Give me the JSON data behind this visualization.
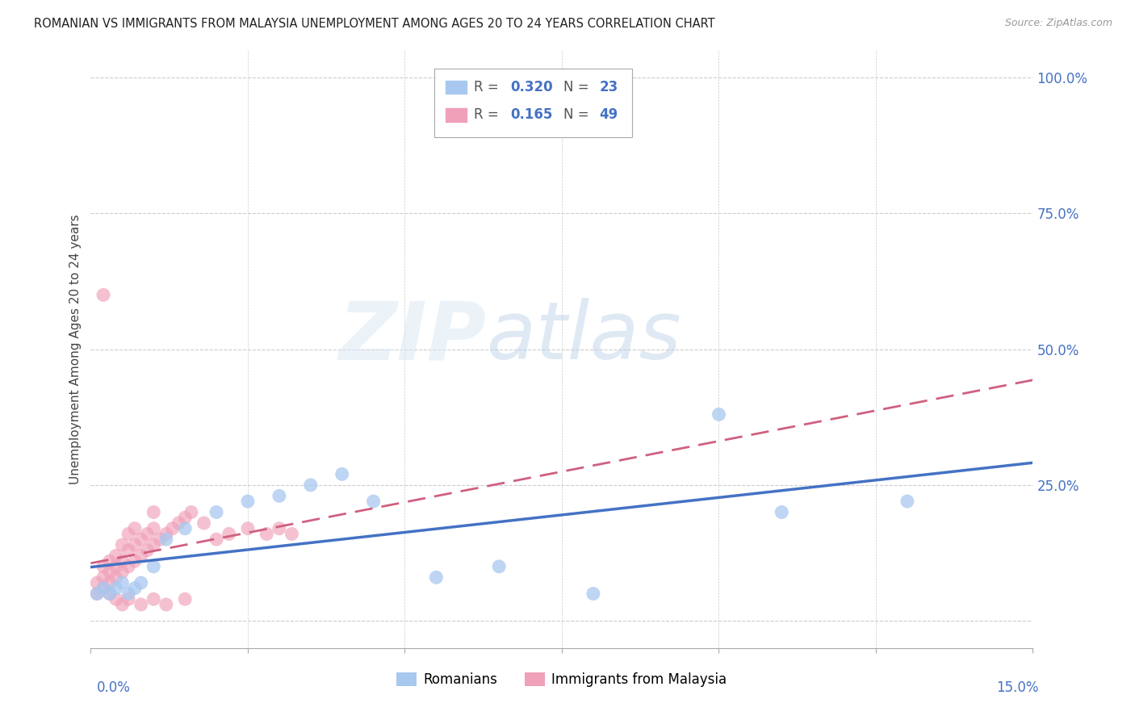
{
  "title": "ROMANIAN VS IMMIGRANTS FROM MALAYSIA UNEMPLOYMENT AMONG AGES 20 TO 24 YEARS CORRELATION CHART",
  "source": "Source: ZipAtlas.com",
  "ylabel": "Unemployment Among Ages 20 to 24 years",
  "xlim": [
    0.0,
    0.15
  ],
  "ylim": [
    -0.05,
    1.05
  ],
  "yticks": [
    0.0,
    0.25,
    0.5,
    0.75,
    1.0
  ],
  "ytick_labels": [
    "",
    "25.0%",
    "50.0%",
    "75.0%",
    "100.0%"
  ],
  "romanian_R": 0.32,
  "romanian_N": 23,
  "malaysia_R": 0.165,
  "malaysia_N": 49,
  "romanians_color": "#a8c8f0",
  "malaysia_color": "#f0a0b8",
  "romanians_line_color": "#4472c4",
  "malaysia_line_color": "#d06080",
  "ro_x": [
    0.001,
    0.002,
    0.003,
    0.004,
    0.005,
    0.006,
    0.007,
    0.008,
    0.01,
    0.012,
    0.015,
    0.02,
    0.025,
    0.03,
    0.035,
    0.04,
    0.045,
    0.055,
    0.065,
    0.08,
    0.1,
    0.11,
    0.13
  ],
  "ro_y": [
    0.05,
    0.06,
    0.05,
    0.06,
    0.07,
    0.05,
    0.06,
    0.07,
    0.1,
    0.15,
    0.17,
    0.2,
    0.22,
    0.23,
    0.25,
    0.27,
    0.22,
    0.08,
    0.1,
    0.05,
    0.38,
    0.2,
    0.22
  ],
  "ma_x": [
    0.001,
    0.001,
    0.002,
    0.002,
    0.002,
    0.003,
    0.003,
    0.003,
    0.004,
    0.004,
    0.004,
    0.005,
    0.005,
    0.005,
    0.006,
    0.006,
    0.006,
    0.007,
    0.007,
    0.007,
    0.008,
    0.008,
    0.009,
    0.009,
    0.01,
    0.01,
    0.01,
    0.011,
    0.012,
    0.013,
    0.014,
    0.015,
    0.016,
    0.018,
    0.02,
    0.022,
    0.025,
    0.028,
    0.03,
    0.032,
    0.002,
    0.003,
    0.004,
    0.005,
    0.006,
    0.008,
    0.01,
    0.012,
    0.015
  ],
  "ma_y": [
    0.05,
    0.07,
    0.06,
    0.08,
    0.1,
    0.07,
    0.09,
    0.11,
    0.08,
    0.1,
    0.12,
    0.09,
    0.11,
    0.14,
    0.1,
    0.13,
    0.16,
    0.11,
    0.14,
    0.17,
    0.12,
    0.15,
    0.13,
    0.16,
    0.14,
    0.17,
    0.2,
    0.15,
    0.16,
    0.17,
    0.18,
    0.19,
    0.2,
    0.18,
    0.15,
    0.16,
    0.17,
    0.16,
    0.17,
    0.16,
    0.6,
    0.05,
    0.04,
    0.03,
    0.04,
    0.03,
    0.04,
    0.03,
    0.04
  ]
}
